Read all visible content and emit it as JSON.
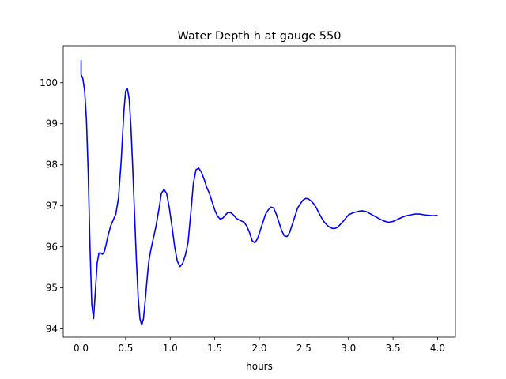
{
  "chart_data": {
    "type": "line",
    "title": "Water Depth h at gauge 550",
    "xlabel": "hours",
    "ylabel": "",
    "xlim": [
      -0.2,
      4.2
    ],
    "ylim": [
      93.8,
      100.9
    ],
    "xticks": [
      0.0,
      0.5,
      1.0,
      1.5,
      2.0,
      2.5,
      3.0,
      3.5,
      4.0
    ],
    "xtick_labels": [
      "0.0",
      "0.5",
      "1.0",
      "1.5",
      "2.0",
      "2.5",
      "3.0",
      "3.5",
      "4.0"
    ],
    "yticks": [
      94,
      95,
      96,
      97,
      98,
      99,
      100
    ],
    "ytick_labels": [
      "94",
      "95",
      "96",
      "97",
      "98",
      "99",
      "100"
    ],
    "grid": false,
    "series": [
      {
        "color": "#0000ff",
        "x": [
          0.0,
          0.0,
          0.0,
          0.02,
          0.04,
          0.06,
          0.08,
          0.1,
          0.12,
          0.14,
          0.16,
          0.18,
          0.2,
          0.22,
          0.24,
          0.26,
          0.28,
          0.3,
          0.33,
          0.36,
          0.39,
          0.42,
          0.45,
          0.48,
          0.5,
          0.52,
          0.54,
          0.56,
          0.58,
          0.6,
          0.62,
          0.64,
          0.66,
          0.68,
          0.7,
          0.72,
          0.74,
          0.76,
          0.78,
          0.8,
          0.82,
          0.84,
          0.86,
          0.88,
          0.9,
          0.93,
          0.96,
          0.99,
          1.02,
          1.05,
          1.08,
          1.11,
          1.14,
          1.17,
          1.2,
          1.23,
          1.26,
          1.29,
          1.32,
          1.35,
          1.38,
          1.41,
          1.44,
          1.47,
          1.5,
          1.53,
          1.56,
          1.59,
          1.62,
          1.65,
          1.68,
          1.71,
          1.74,
          1.77,
          1.8,
          1.83,
          1.86,
          1.89,
          1.92,
          1.95,
          1.98,
          2.01,
          2.04,
          2.07,
          2.1,
          2.13,
          2.16,
          2.19,
          2.22,
          2.25,
          2.28,
          2.31,
          2.34,
          2.37,
          2.4,
          2.43,
          2.46,
          2.49,
          2.52,
          2.55,
          2.58,
          2.61,
          2.64,
          2.67,
          2.7,
          2.73,
          2.76,
          2.79,
          2.82,
          2.85,
          2.88,
          2.91,
          2.94,
          2.97,
          3.0,
          3.05,
          3.1,
          3.15,
          3.2,
          3.25,
          3.3,
          3.35,
          3.4,
          3.45,
          3.5,
          3.55,
          3.6,
          3.65,
          3.7,
          3.75,
          3.8,
          3.85,
          3.9,
          3.95,
          4.0
        ],
        "y": [
          100.55,
          100.2,
          100.2,
          100.1,
          99.8,
          99.1,
          97.8,
          96.0,
          94.6,
          94.25,
          94.9,
          95.6,
          95.85,
          95.85,
          95.82,
          95.88,
          96.05,
          96.25,
          96.5,
          96.65,
          96.8,
          97.2,
          98.1,
          99.3,
          99.8,
          99.85,
          99.6,
          98.9,
          97.9,
          96.8,
          95.7,
          94.8,
          94.25,
          94.1,
          94.25,
          94.7,
          95.2,
          95.65,
          95.9,
          96.1,
          96.3,
          96.5,
          96.75,
          97.0,
          97.3,
          97.4,
          97.3,
          96.95,
          96.5,
          96.0,
          95.65,
          95.52,
          95.6,
          95.8,
          96.1,
          96.8,
          97.55,
          97.88,
          97.92,
          97.82,
          97.65,
          97.45,
          97.3,
          97.1,
          96.9,
          96.75,
          96.68,
          96.7,
          96.78,
          96.84,
          96.83,
          96.78,
          96.7,
          96.66,
          96.63,
          96.6,
          96.5,
          96.35,
          96.15,
          96.1,
          96.2,
          96.4,
          96.6,
          96.8,
          96.9,
          96.97,
          96.95,
          96.8,
          96.6,
          96.4,
          96.27,
          96.25,
          96.35,
          96.55,
          96.75,
          96.95,
          97.05,
          97.14,
          97.18,
          97.17,
          97.12,
          97.05,
          96.95,
          96.82,
          96.7,
          96.6,
          96.53,
          96.48,
          96.45,
          96.45,
          96.48,
          96.55,
          96.62,
          96.7,
          96.78,
          96.83,
          96.86,
          96.88,
          96.86,
          96.8,
          96.74,
          96.68,
          96.63,
          96.6,
          96.62,
          96.67,
          96.72,
          96.76,
          96.78,
          96.8,
          96.8,
          96.78,
          96.77,
          96.76,
          96.77
        ]
      }
    ]
  }
}
